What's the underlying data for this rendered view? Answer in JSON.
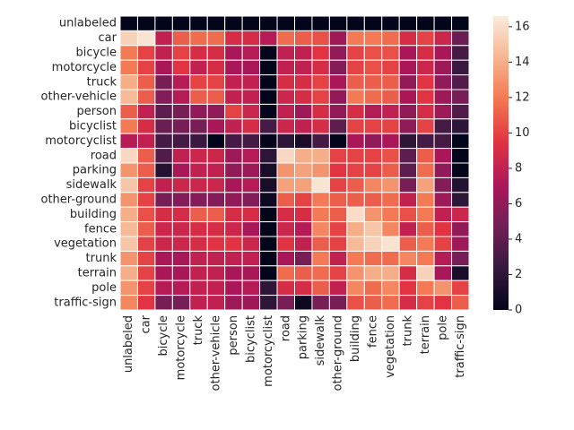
{
  "chart_data": {
    "type": "heatmap",
    "labels": [
      "unlabeled",
      "car",
      "bicycle",
      "motorcycle",
      "truck",
      "other-vehicle",
      "person",
      "bicyclist",
      "motorcyclist",
      "road",
      "parking",
      "sidewalk",
      "other-ground",
      "building",
      "fence",
      "vegetation",
      "trunk",
      "terrain",
      "pole",
      "traffic-sign"
    ],
    "row_labels": [
      "unlabeled",
      "car",
      "bicycle",
      "motorcycle",
      "truck",
      "other-vehicle",
      "person",
      "bicyclist",
      "motorcyclist",
      "road",
      "parking",
      "sidewalk",
      "other-ground",
      "building",
      "fence",
      "vegetation",
      "trunk",
      "terrain",
      "pole",
      "traffic-sign"
    ],
    "col_labels": [
      "unlabeled",
      "car",
      "bicycle",
      "motorcycle",
      "truck",
      "other-vehicle",
      "person",
      "bicyclist",
      "motorcyclist",
      "road",
      "parking",
      "sidewalk",
      "other-ground",
      "building",
      "fence",
      "vegetation",
      "trunk",
      "terrain",
      "pole",
      "traffic-sign"
    ],
    "values": [
      [
        0,
        0,
        0,
        0,
        0,
        0,
        0,
        0,
        0,
        0,
        0,
        0,
        0,
        0,
        0,
        0,
        0,
        0,
        0,
        0
      ],
      [
        15.5,
        16.3,
        8,
        11,
        11.5,
        11.5,
        9,
        9,
        7.5,
        11.5,
        11,
        10.5,
        6.5,
        12,
        12,
        11.5,
        9,
        10,
        8.5,
        4.5
      ],
      [
        12,
        10,
        8,
        10,
        9,
        9,
        7,
        7.5,
        0,
        8,
        8,
        9.5,
        6,
        10,
        10.5,
        10.5,
        7,
        9,
        7,
        3
      ],
      [
        12,
        10,
        7,
        9.5,
        8,
        9,
        7,
        7,
        0,
        8,
        8,
        9,
        5.5,
        10,
        10.5,
        10,
        7,
        8.5,
        6.5,
        2.5
      ],
      [
        14,
        11,
        5,
        7.5,
        10,
        10,
        8,
        8,
        0,
        9,
        9,
        10,
        7,
        11,
        11,
        11,
        6,
        9.5,
        6,
        3.5
      ],
      [
        14.5,
        11,
        5.5,
        7.5,
        11,
        11,
        8,
        8,
        0,
        8.5,
        9,
        10,
        6,
        12,
        11.5,
        11,
        7,
        9.5,
        6.5,
        5
      ],
      [
        11,
        8,
        4,
        5,
        6,
        6,
        10,
        8.5,
        0,
        8,
        6.5,
        9,
        6,
        9,
        7.5,
        8,
        6,
        9,
        6.5,
        3.5
      ],
      [
        12,
        9,
        4.5,
        5,
        5,
        7,
        8,
        9,
        3,
        8.5,
        8,
        9,
        4,
        10,
        10,
        10,
        6,
        10,
        3,
        2
      ],
      [
        7.5,
        8,
        3,
        3,
        2.5,
        0,
        3,
        3,
        0,
        2,
        1,
        3,
        0,
        7,
        6,
        7,
        2,
        3,
        3,
        0
      ],
      [
        15.8,
        11,
        3.5,
        8,
        8.5,
        8.5,
        6.5,
        7.5,
        2,
        15.8,
        14,
        14,
        10,
        10,
        10,
        10.5,
        4,
        11,
        7,
        0
      ],
      [
        13,
        11,
        1.5,
        7,
        8,
        8,
        6,
        6.5,
        1,
        13,
        13.5,
        13,
        9.5,
        10,
        10,
        11,
        4,
        11.5,
        6,
        0
      ],
      [
        15,
        10,
        8,
        8.5,
        8.5,
        8.5,
        7,
        7.5,
        1,
        13.5,
        13.5,
        16.3,
        10,
        11,
        12.5,
        13,
        5,
        13.5,
        5.5,
        1.5
      ],
      [
        13,
        10,
        5,
        5.5,
        5.5,
        5.5,
        6,
        5.5,
        0.5,
        11,
        10,
        12,
        11,
        11,
        11,
        11.5,
        8,
        12,
        6.5,
        2
      ],
      [
        14,
        10.5,
        9,
        9,
        11,
        11,
        9,
        9,
        0,
        9,
        9,
        12,
        11,
        16,
        13,
        12,
        10.5,
        12,
        8,
        8.5
      ],
      [
        14.5,
        11,
        8.5,
        8.5,
        9,
        9,
        8.5,
        7,
        0,
        8.5,
        7.5,
        12.5,
        10,
        14,
        15,
        12.5,
        8,
        11,
        9.5,
        6
      ],
      [
        15,
        10,
        8.5,
        8.5,
        9,
        9.5,
        9.5,
        8.5,
        0,
        9.5,
        8,
        11,
        10,
        14.5,
        15.5,
        16.2,
        11,
        12,
        10,
        6.5
      ],
      [
        13,
        10,
        7,
        7,
        8,
        8,
        8,
        8,
        0,
        7,
        5,
        12,
        8,
        12,
        11.5,
        11.5,
        12.5,
        12,
        7.5,
        5
      ],
      [
        14,
        10,
        7,
        7,
        8,
        8,
        7,
        7,
        0,
        11.5,
        11,
        11.5,
        10,
        13,
        14,
        14,
        9,
        15.5,
        7,
        1
      ],
      [
        13,
        10,
        7.5,
        7.5,
        8,
        8,
        7,
        7.5,
        2,
        9,
        9,
        11,
        8,
        12.5,
        11.5,
        12.5,
        9.5,
        12,
        13,
        10
      ],
      [
        12.5,
        9.5,
        5,
        5,
        8,
        8,
        6.5,
        6.5,
        2,
        5,
        0.5,
        5,
        5,
        10.5,
        11,
        11.5,
        9,
        10,
        9.5,
        11
      ]
    ],
    "vmin": 0,
    "vmax": 16.6,
    "colorbar_ticks": [
      0,
      2,
      4,
      6,
      8,
      10,
      12,
      14,
      16
    ],
    "colormap_stops": [
      "#03051a",
      "#36193e",
      "#701f57",
      "#ad1759",
      "#e13342",
      "#f37651",
      "#f6b48f",
      "#faebdd"
    ],
    "cell_border_color": "#ffffff"
  }
}
